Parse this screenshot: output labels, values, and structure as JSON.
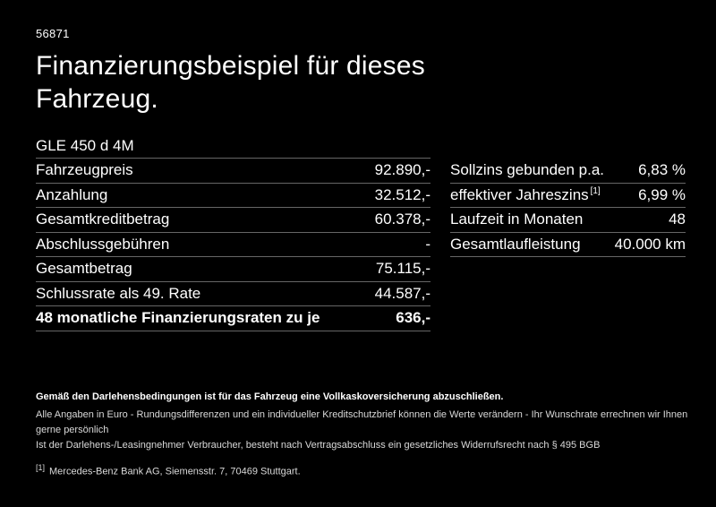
{
  "page": {
    "ref_number": "56871",
    "title_line1": "Finanzierungsbeispiel für dieses",
    "title_line2": "Fahrzeug.",
    "vehicle_model": "GLE 450 d 4M",
    "colors": {
      "background": "#000000",
      "text": "#ffffff",
      "divider": "#666666"
    }
  },
  "finance_table": {
    "rows": [
      {
        "label": "Fahrzeugpreis",
        "value": "92.890,-"
      },
      {
        "label": "Anzahlung",
        "value": "32.512,-"
      },
      {
        "label": "Gesamtkreditbetrag",
        "value": "60.378,-"
      },
      {
        "label": "Abschlussgebühren",
        "value": "-"
      },
      {
        "label": "Gesamtbetrag",
        "value": "75.115,-"
      },
      {
        "label": "Schlussrate als 49. Rate",
        "value": "44.587,-"
      },
      {
        "label": "48 monatliche Finanzierungsraten zu je",
        "value": "636,-"
      }
    ]
  },
  "conditions_table": {
    "rows": [
      {
        "label": "Sollzins gebunden p.a.",
        "sup": "",
        "value": "6,83 %"
      },
      {
        "label": "effektiver Jahreszins",
        "sup": "[1]",
        "value": "6,99 %"
      },
      {
        "label": "Laufzeit in Monaten",
        "sup": "",
        "value": "48"
      },
      {
        "label": "Gesamtlaufleistung",
        "sup": "",
        "value": "40.000 km"
      }
    ]
  },
  "footer": {
    "bold_note": "Gemäß den Darlehensbedingungen ist für das Fahrzeug eine Vollkaskoversicherung abzuschließen.",
    "note_line1": "Alle Angaben in Euro - Rundungsdifferenzen und ein individueller Kreditschutzbrief können die Werte verändern - Ihr Wunschrate errechnen wir Ihnen gerne persönlich",
    "note_line2": "Ist der Darlehens-/Leasingnehmer Verbraucher, besteht nach Vertragsabschluss ein gesetzliches Widerrufsrecht nach § 495 BGB",
    "footnote_marker": "[1]",
    "footnote_text": "Mercedes-Benz Bank AG, Siemensstr. 7, 70469 Stuttgart."
  }
}
